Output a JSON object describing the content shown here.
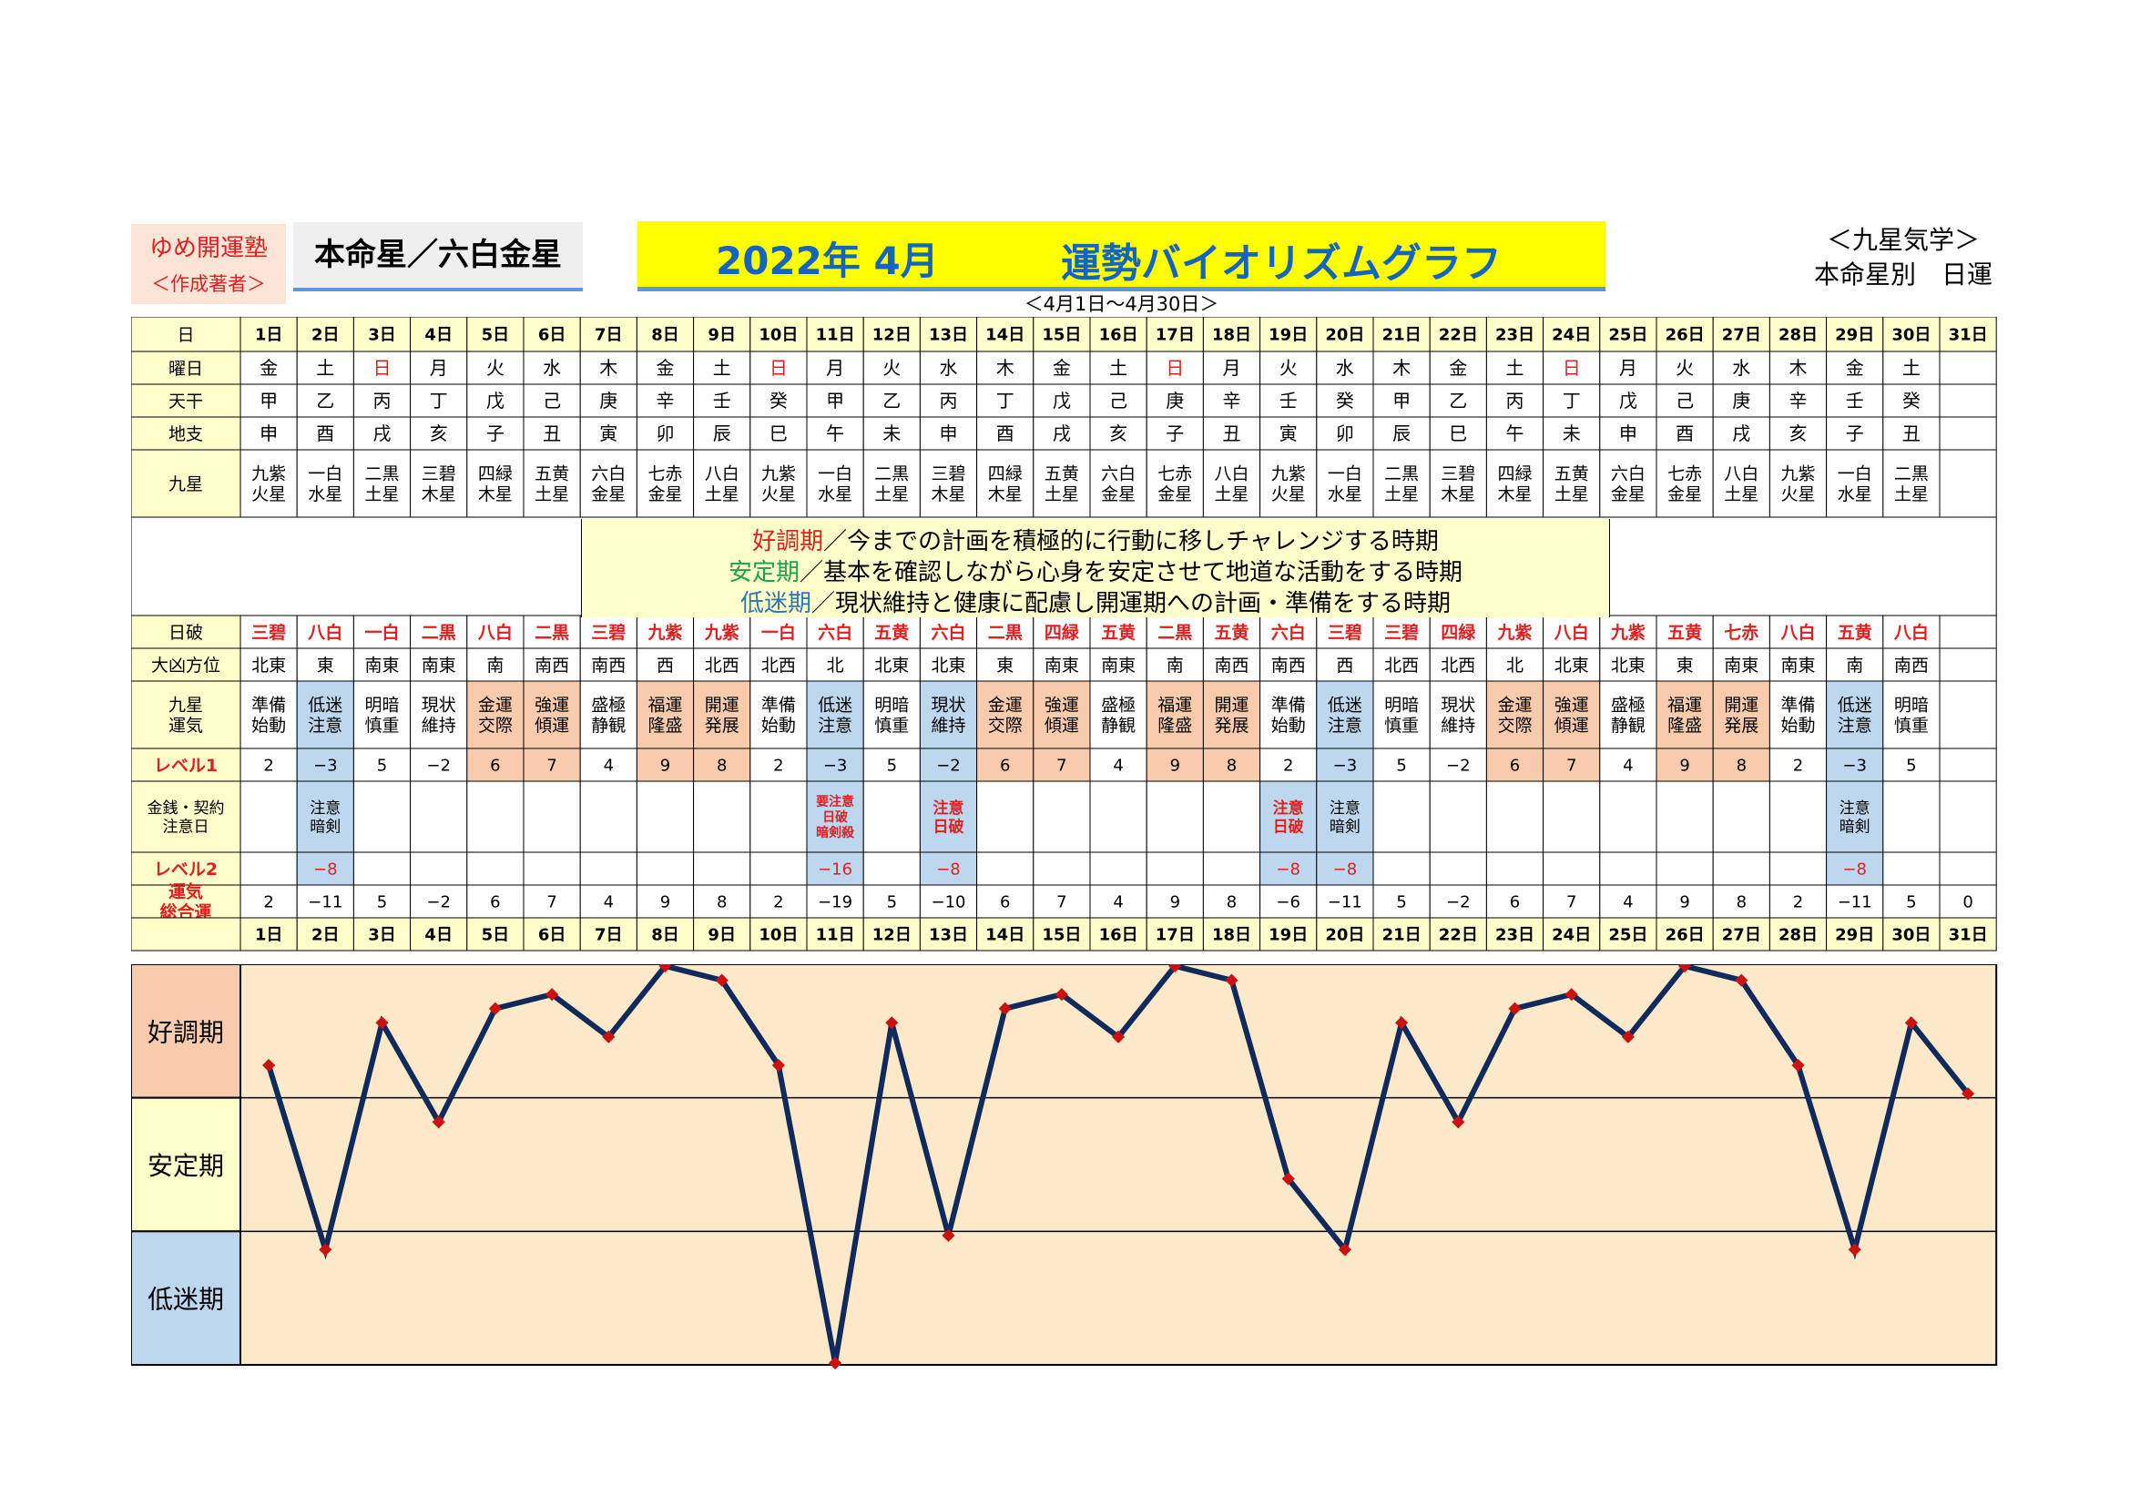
{
  "header": {
    "author_name": "ゆめ開運塾",
    "author_role": "＜作成著者＞",
    "honmeisei": "本命星／六白金星",
    "title_date": "2022年 4月",
    "title_main": "運勢バイオリズムグラフ",
    "date_range": "＜4月1日～4月30日＞",
    "right_line1": "＜九星気学＞",
    "right_line2": "本命星別　日運"
  },
  "row_labels": {
    "day": "日",
    "weekday": "曜日",
    "tenkan": "天干",
    "chishi": "地支",
    "kyusei": "九星",
    "nippa": "日破",
    "daikyo": "大凶方位",
    "unki": "九星\n運気",
    "level1": "レベル1",
    "kinsen": "金銭・契約\n注意日",
    "level2": "レベル2",
    "sogo": "運気\n総合運"
  },
  "days": [
    "1日",
    "2日",
    "3日",
    "4日",
    "5日",
    "6日",
    "7日",
    "8日",
    "9日",
    "10日",
    "11日",
    "12日",
    "13日",
    "14日",
    "15日",
    "16日",
    "17日",
    "18日",
    "19日",
    "20日",
    "21日",
    "22日",
    "23日",
    "24日",
    "25日",
    "26日",
    "27日",
    "28日",
    "29日",
    "30日",
    "31日"
  ],
  "weekdays": [
    "金",
    "土",
    "日",
    "月",
    "火",
    "水",
    "木",
    "金",
    "土",
    "日",
    "月",
    "火",
    "水",
    "木",
    "金",
    "土",
    "日",
    "月",
    "火",
    "水",
    "木",
    "金",
    "土",
    "日",
    "月",
    "火",
    "水",
    "木",
    "金",
    "土",
    ""
  ],
  "tenkan": [
    "甲",
    "乙",
    "丙",
    "丁",
    "戊",
    "己",
    "庚",
    "辛",
    "壬",
    "癸",
    "甲",
    "乙",
    "丙",
    "丁",
    "戊",
    "己",
    "庚",
    "辛",
    "壬",
    "癸",
    "甲",
    "乙",
    "丙",
    "丁",
    "戊",
    "己",
    "庚",
    "辛",
    "壬",
    "癸",
    ""
  ],
  "chishi": [
    "申",
    "酉",
    "戌",
    "亥",
    "子",
    "丑",
    "寅",
    "卯",
    "辰",
    "巳",
    "午",
    "未",
    "申",
    "酉",
    "戌",
    "亥",
    "子",
    "丑",
    "寅",
    "卯",
    "辰",
    "巳",
    "午",
    "未",
    "申",
    "酉",
    "戌",
    "亥",
    "子",
    "丑",
    ""
  ],
  "kyusei": [
    "九紫\n火星",
    "一白\n水星",
    "二黒\n土星",
    "三碧\n木星",
    "四緑\n木星",
    "五黄\n土星",
    "六白\n金星",
    "七赤\n金星",
    "八白\n土星",
    "九紫\n火星",
    "一白\n水星",
    "二黒\n土星",
    "三碧\n木星",
    "四緑\n木星",
    "五黄\n土星",
    "六白\n金星",
    "七赤\n金星",
    "八白\n土星",
    "九紫\n火星",
    "一白\n水星",
    "二黒\n土星",
    "三碧\n木星",
    "四緑\n木星",
    "五黄\n土星",
    "六白\n金星",
    "七赤\n金星",
    "八白\n土星",
    "九紫\n火星",
    "一白\n水星",
    "二黒\n土星",
    ""
  ],
  "notice": [
    {
      "keyword": "好調期",
      "text": "／今までの計画を積極的に行動に移しチャレンジする時期",
      "color": "#e02020"
    },
    {
      "keyword": "安定期",
      "text": "／基本を確認しながら心身を安定させて地道な活動をする時期",
      "color": "#1aa34a"
    },
    {
      "keyword": "低迷期",
      "text": "／現状維持と健康に配慮し開運期への計画・準備をする時期",
      "color": "#2e75b6"
    }
  ],
  "nippa": [
    "三碧",
    "八白",
    "一白",
    "二黒",
    "八白",
    "二黒",
    "三碧",
    "九紫",
    "九紫",
    "一白",
    "六白",
    "五黄",
    "六白",
    "二黒",
    "四緑",
    "五黄",
    "二黒",
    "五黄",
    "六白",
    "三碧",
    "三碧",
    "四緑",
    "九紫",
    "八白",
    "九紫",
    "五黄",
    "七赤",
    "八白",
    "五黄",
    "八白",
    ""
  ],
  "daikyo": [
    "北東",
    "東",
    "南東",
    "南東",
    "南",
    "南西",
    "南西",
    "西",
    "北西",
    "北西",
    "北",
    "北東",
    "北東",
    "東",
    "南東",
    "南東",
    "南",
    "南西",
    "南西",
    "西",
    "北西",
    "北西",
    "北",
    "北東",
    "北東",
    "東",
    "南東",
    "南東",
    "南",
    "南西",
    ""
  ],
  "unki": [
    "準備\n始動",
    "低迷\n注意",
    "明暗\n慎重",
    "現状\n維持",
    "金運\n交際",
    "強運\n傾運",
    "盛極\n静観",
    "福運\n隆盛",
    "開運\n発展",
    "準備\n始動",
    "低迷\n注意",
    "明暗\n慎重",
    "現状\n維持",
    "金運\n交際",
    "強運\n傾運",
    "盛極\n静観",
    "福運\n隆盛",
    "開運\n発展",
    "準備\n始動",
    "低迷\n注意",
    "明暗\n慎重",
    "現状\n維持",
    "金運\n交際",
    "強運\n傾運",
    "盛極\n静観",
    "福運\n隆盛",
    "開運\n発展",
    "準備\n始動",
    "低迷\n注意",
    "明暗\n慎重",
    ""
  ],
  "level1": [
    "2",
    "−3",
    "5",
    "−2",
    "6",
    "7",
    "4",
    "9",
    "8",
    "2",
    "−3",
    "5",
    "−2",
    "6",
    "7",
    "4",
    "9",
    "8",
    "2",
    "−3",
    "5",
    "−2",
    "6",
    "7",
    "4",
    "9",
    "8",
    "2",
    "−3",
    "5",
    ""
  ],
  "kinsen": [
    "",
    "注意\n暗剣",
    "",
    "",
    "",
    "",
    "",
    "",
    "",
    "",
    "要注意\n日破\n暗剣殺",
    "",
    "注意\n日破",
    "",
    "",
    "",
    "",
    "",
    "注意\n日破",
    "注意\n暗剣",
    "",
    "",
    "",
    "",
    "",
    "",
    "",
    "",
    "注意\n暗剣",
    "",
    ""
  ],
  "level2": [
    "",
    "−8",
    "",
    "",
    "",
    "",
    "",
    "",
    "",
    "",
    "−16",
    "",
    "−8",
    "",
    "",
    "",
    "",
    "",
    "−8",
    "−8",
    "",
    "",
    "",
    "",
    "",
    "",
    "",
    "",
    "−8",
    "",
    ""
  ],
  "sogo": [
    "2",
    "−11",
    "5",
    "−2",
    "6",
    "7",
    "4",
    "9",
    "8",
    "2",
    "−19",
    "5",
    "−10",
    "6",
    "7",
    "4",
    "9",
    "8",
    "−6",
    "−11",
    "5",
    "−2",
    "6",
    "7",
    "4",
    "9",
    "8",
    "2",
    "−11",
    "5",
    "0"
  ],
  "colors": {
    "label_bg": "#ffffcc",
    "good_bg": "#f8cbad",
    "low_bg": "#bdd7ee",
    "red_text": "#e02020",
    "graph_bg": "#fce9c9",
    "line": "#102a5c",
    "marker": "#cc1111"
  },
  "chart_data": {
    "type": "line",
    "x": [
      "1日",
      "2日",
      "3日",
      "4日",
      "5日",
      "6日",
      "7日",
      "8日",
      "9日",
      "10日",
      "11日",
      "12日",
      "13日",
      "14日",
      "15日",
      "16日",
      "17日",
      "18日",
      "19日",
      "20日",
      "21日",
      "22日",
      "23日",
      "24日",
      "25日",
      "26日",
      "27日",
      "28日",
      "29日",
      "30日",
      "31日"
    ],
    "values": [
      2,
      -11,
      5,
      -2,
      6,
      7,
      4,
      9,
      8,
      2,
      -19,
      5,
      -10,
      6,
      7,
      4,
      9,
      8,
      -6,
      -11,
      5,
      -2,
      6,
      7,
      4,
      9,
      8,
      2,
      -11,
      5,
      0
    ],
    "ylim": [
      -19,
      9
    ],
    "bands": [
      "好調期",
      "安定期",
      "低迷期"
    ],
    "grid": false
  }
}
